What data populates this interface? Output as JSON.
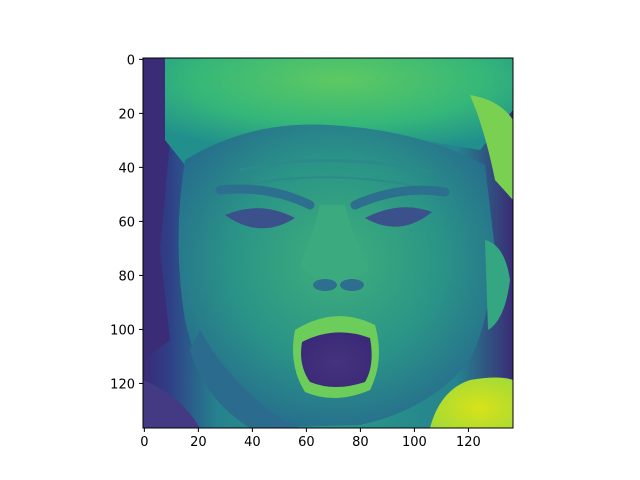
{
  "chart_data": {
    "type": "heatmap",
    "title": "",
    "xlabel": "",
    "ylabel": "",
    "colormap": "viridis",
    "image_shape": [
      137,
      137
    ],
    "xlim": [
      -0.5,
      136.5
    ],
    "ylim": [
      136.5,
      -0.5
    ],
    "y_inverted": true,
    "grid": false,
    "xticks": [
      0,
      20,
      40,
      60,
      80,
      100,
      120
    ],
    "yticks": [
      0,
      20,
      40,
      60,
      80,
      100,
      120
    ],
    "xtick_labels": [
      "0",
      "20",
      "40",
      "60",
      "80",
      "100",
      "120"
    ],
    "ytick_labels": [
      "0",
      "20",
      "40",
      "60",
      "80",
      "100",
      "120"
    ],
    "content": "grayscale face photograph rendered with the viridis colormap"
  }
}
